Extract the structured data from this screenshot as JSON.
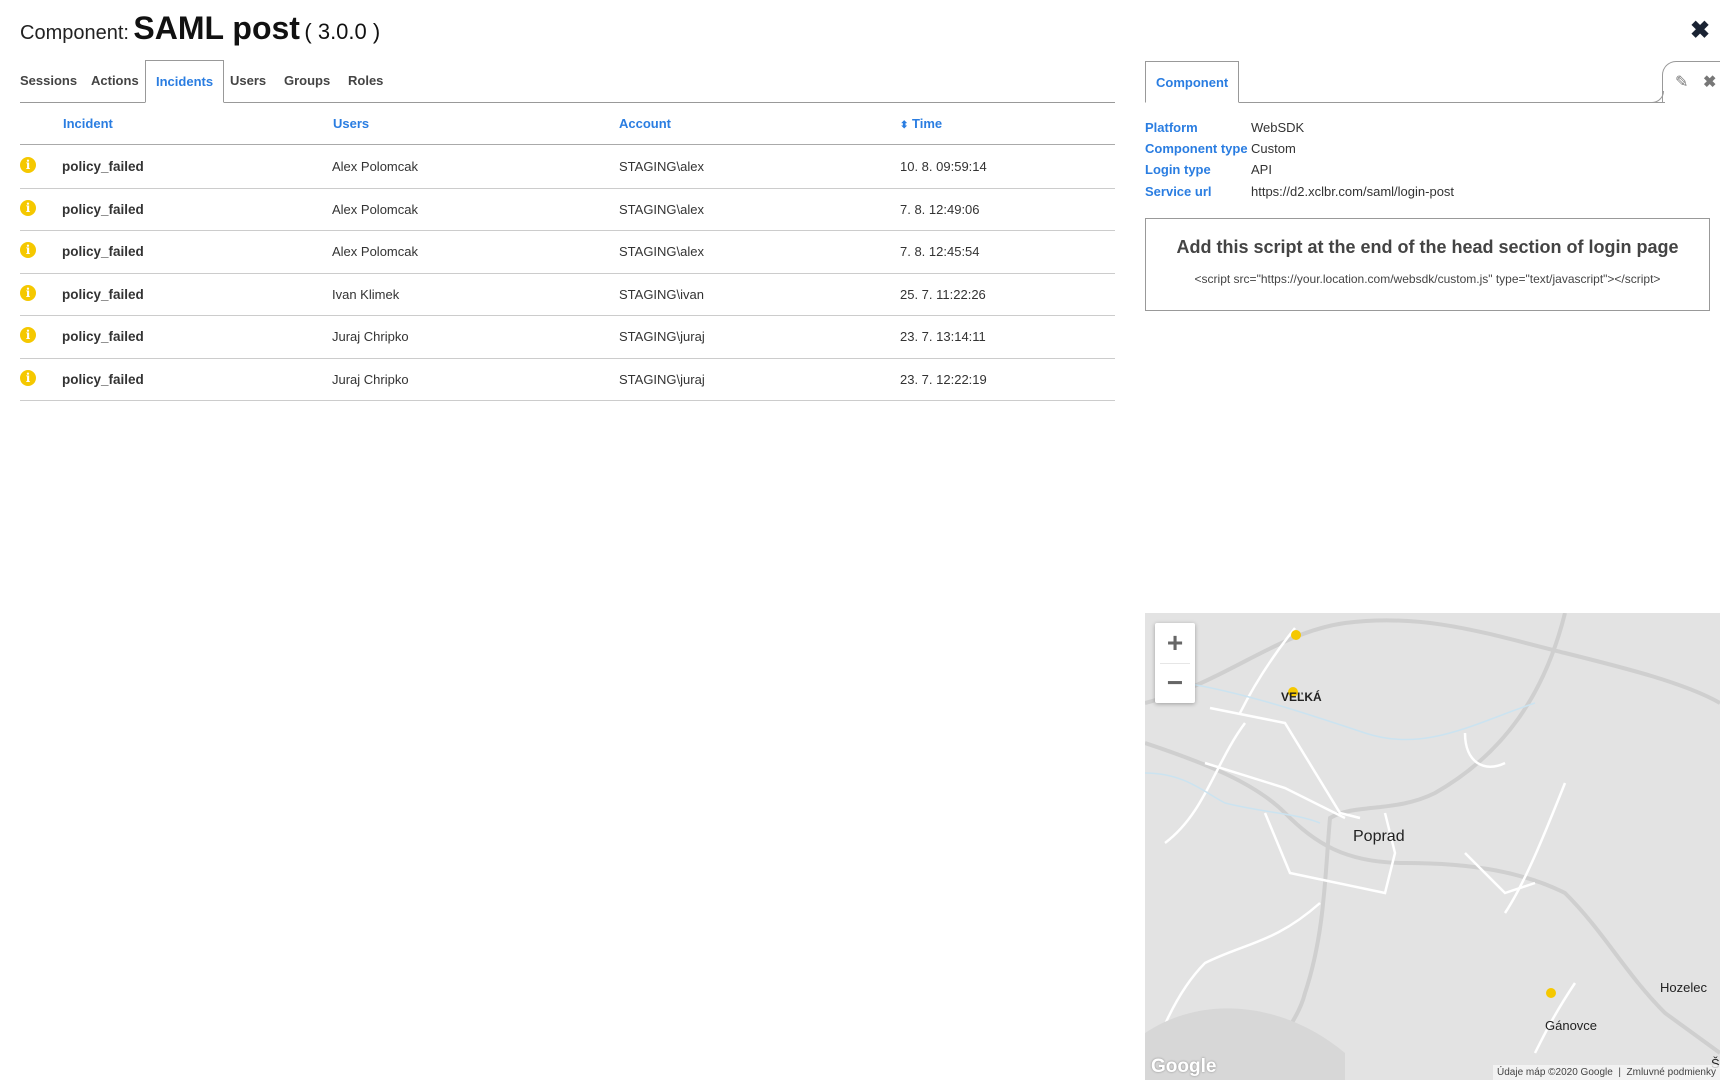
{
  "header": {
    "prefix": "Component:",
    "name": "SAML post",
    "version": "( 3.0.0 )",
    "close_icon": "close-icon"
  },
  "tabs": [
    {
      "label": "Sessions"
    },
    {
      "label": "Actions"
    },
    {
      "label": "Incidents",
      "active": true
    },
    {
      "label": "Users"
    },
    {
      "label": "Groups"
    },
    {
      "label": "Roles"
    }
  ],
  "table": {
    "columns": [
      "Incident",
      "Users",
      "Account",
      "Time"
    ],
    "sort_icon": "sort-icon",
    "rows": [
      {
        "incident": "policy_failed",
        "user": "Alex Polomcak",
        "account": "STAGING\\alex",
        "time": "10. 8. 09:59:14"
      },
      {
        "incident": "policy_failed",
        "user": "Alex Polomcak",
        "account": "STAGING\\alex",
        "time": "7. 8. 12:49:06"
      },
      {
        "incident": "policy_failed",
        "user": "Alex Polomcak",
        "account": "STAGING\\alex",
        "time": "7. 8. 12:45:54"
      },
      {
        "incident": "policy_failed",
        "user": "Ivan Klimek",
        "account": "STAGING\\ivan",
        "time": "25. 7. 11:22:26"
      },
      {
        "incident": "policy_failed",
        "user": "Juraj Chripko",
        "account": "STAGING\\juraj",
        "time": "23. 7. 13:14:11"
      },
      {
        "incident": "policy_failed",
        "user": "Juraj Chripko",
        "account": "STAGING\\juraj",
        "time": "23. 7. 12:22:19"
      }
    ]
  },
  "panel": {
    "tab": "Component",
    "properties": [
      {
        "key": "Platform",
        "value": "WebSDK"
      },
      {
        "key": "Component type",
        "value": "Custom"
      },
      {
        "key": "Login type",
        "value": "API"
      },
      {
        "key": "Service url",
        "value": "https://d2.xclbr.com/saml/login-post"
      }
    ],
    "script_title": "Add this script at the end of the head section of login page",
    "script_code": "<script src=\"https://your.location.com/websdk/custom.js\" type=\"text/javascript\"></script>"
  },
  "map": {
    "zoom_in": "+",
    "zoom_out": "−",
    "labels": [
      "VEĽKÁ",
      "Poprad",
      "Hozelec",
      "Gánovce",
      "Š"
    ],
    "logo": "Google",
    "attribution": "Údaje máp ©2020 Google",
    "terms": "Zmluvné podmienky",
    "marker_color": "#f5c800"
  }
}
